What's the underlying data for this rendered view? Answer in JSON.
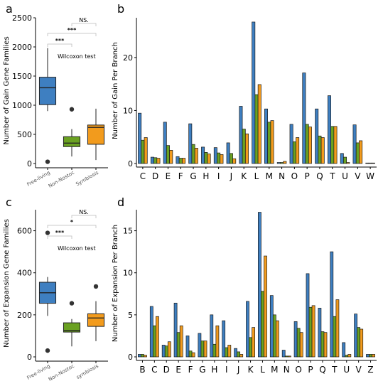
{
  "colors": {
    "free_living": "#3e7fc1",
    "non_nostoc": "#6aa121",
    "symbiosis": "#f29b1d",
    "outline": "#1a1a1a"
  },
  "chart_data": [
    {
      "id": "a",
      "type": "boxplot",
      "panel_label": "a",
      "ylabel": "Number of Gain Gene Families",
      "ylim": [
        0,
        2500
      ],
      "yticks": [
        0,
        500,
        1000,
        1500,
        2000,
        2500
      ],
      "categories": [
        "Free-living",
        "Non-Nostoc",
        "Symbiosis"
      ],
      "boxes": [
        {
          "q1": 1010,
          "median": 1300,
          "q3": 1480,
          "whisker_low": 900,
          "whisker_high": 1980,
          "outliers": [
            30
          ]
        },
        {
          "q1": 290,
          "median": 350,
          "q3": 460,
          "whisker_low": 120,
          "whisker_high": 590,
          "outliers": [
            930
          ]
        },
        {
          "q1": 330,
          "median": 620,
          "q3": 660,
          "whisker_low": 60,
          "whisker_high": 940,
          "outliers": []
        }
      ],
      "annotations": {
        "test": "Wilcoxon test",
        "sig_outer": "NS.",
        "sig_mid": "***",
        "sig_inner": "***"
      }
    },
    {
      "id": "b",
      "type": "bar",
      "panel_label": "b",
      "ylabel": "Number of Gain Per Branch",
      "ylim": [
        0,
        27.5
      ],
      "yticks": [
        0,
        10,
        20
      ],
      "categories": [
        "C",
        "D",
        "E",
        "F",
        "G",
        "H",
        "I",
        "J",
        "K",
        "L",
        "M",
        "N",
        "O",
        "P",
        "Q",
        "T",
        "U",
        "V",
        "W"
      ],
      "series": [
        {
          "key": "free_living",
          "values": [
            9.5,
            1.2,
            7.8,
            1.3,
            7.5,
            3.1,
            3.0,
            3.9,
            10.8,
            26.7,
            10.3,
            0.2,
            7.4,
            17.1,
            10.3,
            12.8,
            1.9,
            7.3,
            0.1
          ]
        },
        {
          "key": "non_nostoc",
          "values": [
            4.4,
            1.1,
            3.4,
            1.0,
            3.6,
            2.1,
            2.0,
            1.9,
            6.5,
            13.0,
            7.8,
            0.2,
            4.1,
            7.4,
            5.2,
            7.0,
            1.2,
            3.9,
            0.1
          ]
        },
        {
          "key": "symbiosis",
          "values": [
            4.9,
            1.0,
            2.5,
            1.0,
            2.9,
            1.8,
            1.7,
            0.9,
            5.6,
            14.9,
            8.1,
            0.4,
            4.9,
            6.9,
            4.9,
            7.0,
            0.2,
            4.3,
            0.1
          ]
        }
      ]
    },
    {
      "id": "c",
      "type": "boxplot",
      "panel_label": "c",
      "ylabel": "Number of Expansion Gene Families",
      "ylim": [
        0,
        700
      ],
      "yticks": [
        0,
        200,
        400,
        600
      ],
      "categories": [
        "Free-living",
        "Non-Nostoc",
        "symbiosis"
      ],
      "boxes": [
        {
          "q1": 255,
          "median": 305,
          "q3": 355,
          "whisker_low": 195,
          "whisker_high": 380,
          "outliers": [
            590,
            30
          ]
        },
        {
          "q1": 118,
          "median": 125,
          "q3": 162,
          "whisker_low": 50,
          "whisker_high": 180,
          "outliers": [
            255
          ]
        },
        {
          "q1": 145,
          "median": 185,
          "q3": 205,
          "whisker_low": 75,
          "whisker_high": 265,
          "outliers": [
            335
          ]
        }
      ],
      "annotations": {
        "test": "Wilcoxon test",
        "sig_outer": "NS.",
        "sig_mid": "*",
        "sig_inner": "***"
      }
    },
    {
      "id": "d",
      "type": "bar",
      "panel_label": "d",
      "ylabel": "Number of Expansion Per Branch",
      "ylim": [
        0,
        17.5
      ],
      "yticks": [
        0,
        5,
        10,
        15
      ],
      "categories": [
        "B",
        "C",
        "D",
        "E",
        "F",
        "G",
        "H",
        "I",
        "J",
        "K",
        "L",
        "M",
        "N",
        "O",
        "P",
        "Q",
        "T",
        "U",
        "V",
        "Z"
      ],
      "series": [
        {
          "key": "free_living",
          "values": [
            0.3,
            6.0,
            1.4,
            6.4,
            2.5,
            2.8,
            5.0,
            4.3,
            1.0,
            6.6,
            17.2,
            7.3,
            0.8,
            4.2,
            9.9,
            5.8,
            12.5,
            1.7,
            5.1,
            0.3
          ]
        },
        {
          "key": "non_nostoc",
          "values": [
            0.3,
            3.7,
            1.3,
            2.9,
            0.7,
            1.9,
            1.5,
            1.1,
            0.6,
            2.3,
            7.8,
            5.0,
            0.1,
            3.4,
            5.9,
            3.0,
            4.8,
            0.2,
            3.5,
            0.3
          ]
        },
        {
          "key": "symbiosis",
          "values": [
            0.2,
            4.8,
            1.8,
            3.7,
            0.5,
            1.9,
            3.7,
            1.4,
            0.3,
            3.5,
            12.0,
            4.3,
            0.1,
            2.9,
            6.1,
            2.9,
            6.8,
            0.3,
            3.3,
            0.3
          ]
        }
      ]
    }
  ]
}
